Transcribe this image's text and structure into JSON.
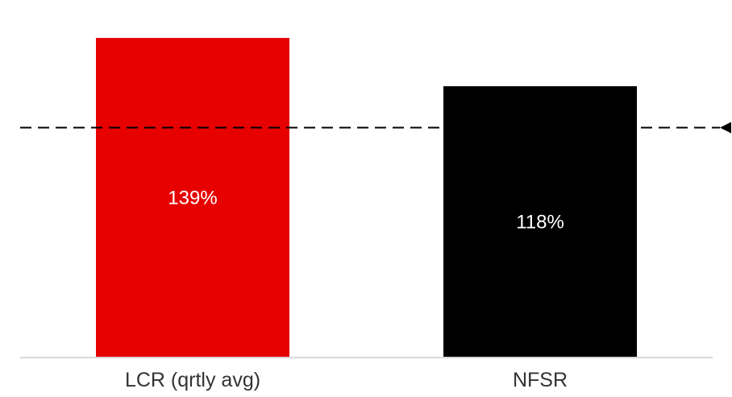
{
  "chart_data": {
    "type": "bar",
    "categories": [
      "LCR (qrtly avg)",
      "NFSR"
    ],
    "values": [
      139,
      118
    ],
    "value_labels": [
      "139%",
      "118%"
    ],
    "colors": [
      "#e60000",
      "#000000"
    ],
    "reference_line": {
      "value": 100,
      "style": "dashed",
      "color": "#000000"
    },
    "title": "",
    "xlabel": "",
    "ylabel": "",
    "ylim": [
      0,
      152
    ],
    "grid": false,
    "legend": "none"
  }
}
